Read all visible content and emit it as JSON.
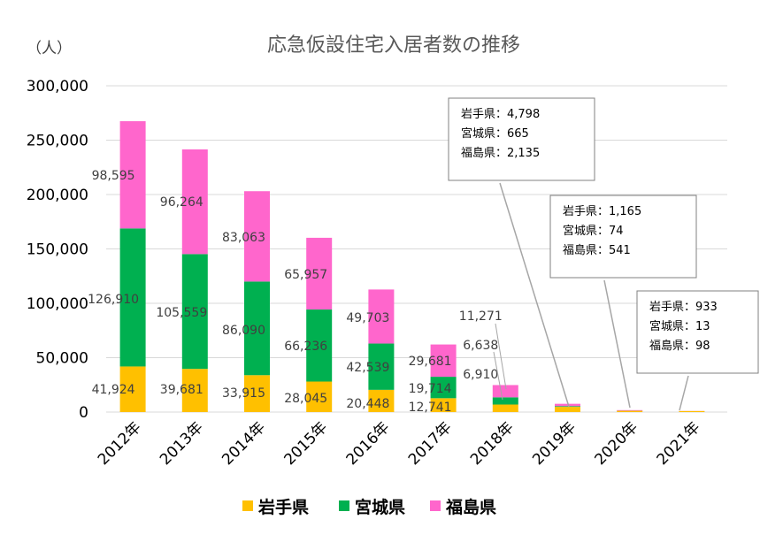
{
  "chart_data": {
    "type": "bar",
    "stacked": true,
    "title": "応急仮設住宅入居者数の推移",
    "unit_label": "（人）",
    "categories": [
      "2012年",
      "2013年",
      "2014年",
      "2015年",
      "2016年",
      "2017年",
      "2018年",
      "2019年",
      "2020年",
      "2021年"
    ],
    "ylim": [
      0,
      300000
    ],
    "yticks": [
      0,
      50000,
      100000,
      150000,
      200000,
      250000,
      300000
    ],
    "ytick_labels": [
      "0",
      "50,000",
      "100,000",
      "150,000",
      "200,000",
      "250,000",
      "300,000"
    ],
    "grid": true,
    "legend_position": "bottom",
    "series": [
      {
        "name": "岩手県",
        "color": "#FFC000",
        "values": [
          41924,
          39681,
          33915,
          28045,
          20448,
          12741,
          6910,
          4798,
          1165,
          933
        ],
        "labels": [
          "41,924",
          "39,681",
          "33,915",
          "28,045",
          "20,448",
          "12,741",
          "6,910",
          "",
          "",
          ""
        ]
      },
      {
        "name": "宮城県",
        "color": "#00B050",
        "values": [
          126910,
          105559,
          86090,
          66236,
          42539,
          19714,
          6638,
          665,
          74,
          13
        ],
        "labels": [
          "126,910",
          "105,559",
          "86,090",
          "66,236",
          "42,539",
          "19,714",
          "6,638",
          "",
          "",
          ""
        ]
      },
      {
        "name": "福島県",
        "color": "#FF66CC",
        "values": [
          98595,
          96264,
          83063,
          65957,
          49703,
          29681,
          11271,
          2135,
          541,
          98
        ],
        "labels": [
          "98,595",
          "96,264",
          "83,063",
          "65,957",
          "49,703",
          "29,681",
          "11,271",
          "",
          "",
          ""
        ]
      }
    ],
    "callouts": [
      {
        "category": "2019年",
        "lines": [
          "岩手県：4,798",
          "宮城県：665",
          "福島県：2,135"
        ]
      },
      {
        "category": "2020年",
        "lines": [
          "岩手県：1,165",
          "宮城県：74",
          "福島県：541"
        ]
      },
      {
        "category": "2021年",
        "lines": [
          "岩手県：933",
          "宮城県：13",
          "福島県：98"
        ]
      }
    ]
  }
}
